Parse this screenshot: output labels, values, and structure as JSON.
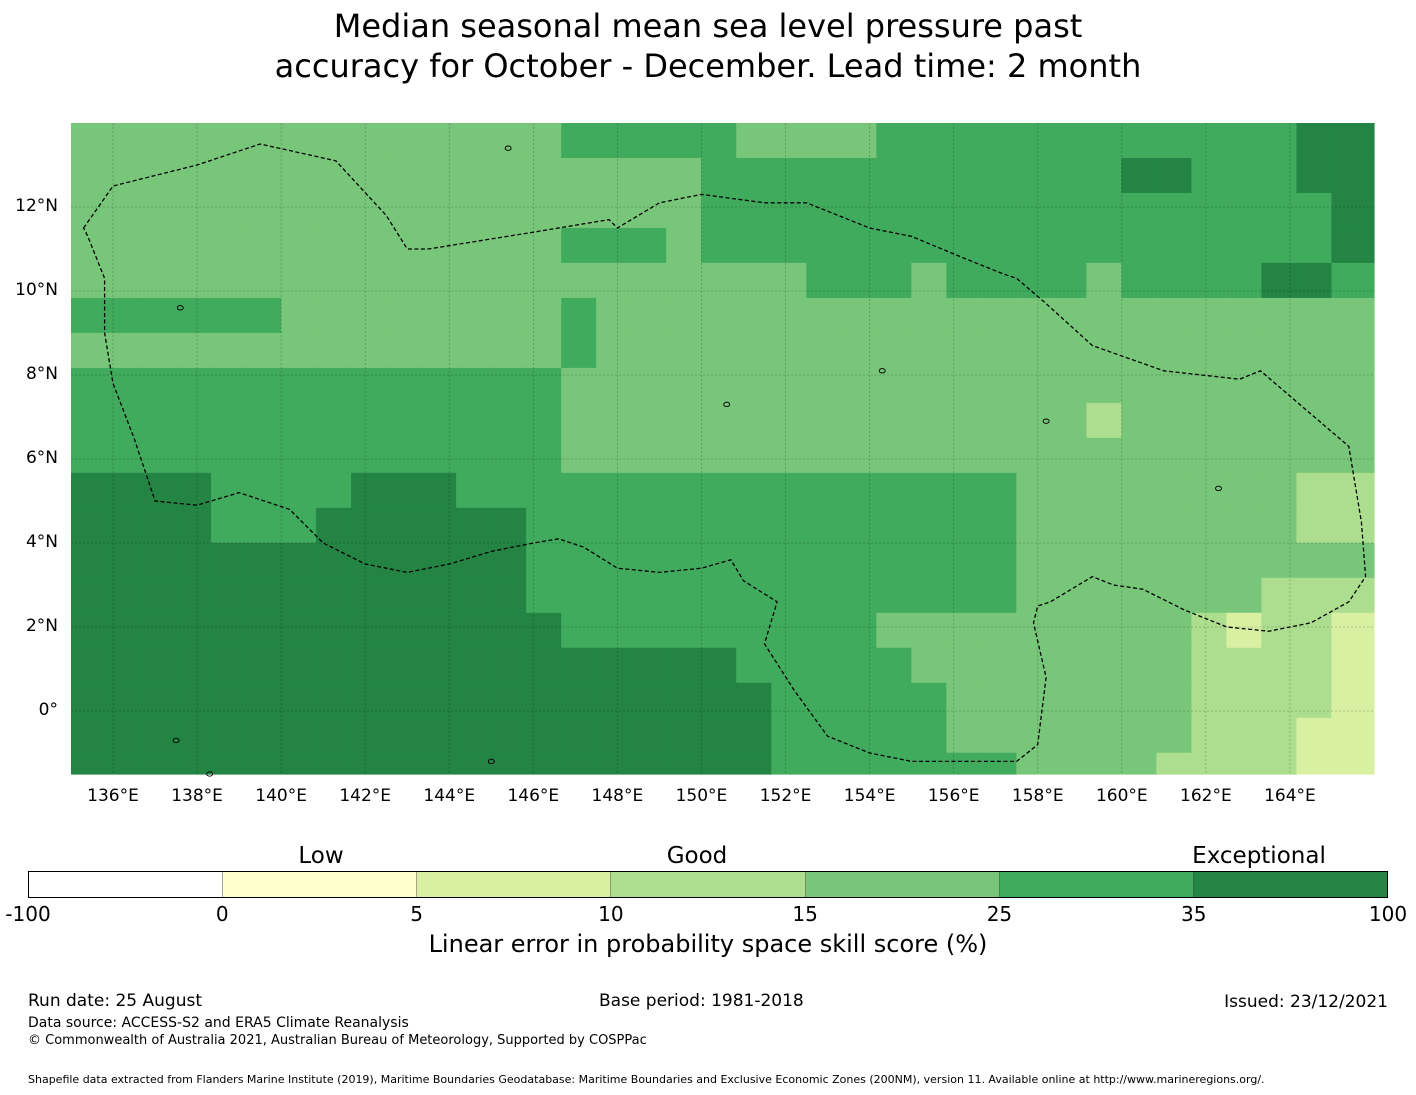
{
  "title": {
    "line1": "Median seasonal mean sea level pressure past",
    "line2": "accuracy for October - December. Lead time: 2 month"
  },
  "map": {
    "lon_labels": [
      "136°E",
      "138°E",
      "140°E",
      "142°E",
      "144°E",
      "146°E",
      "148°E",
      "150°E",
      "152°E",
      "154°E",
      "156°E",
      "158°E",
      "160°E",
      "162°E",
      "164°E"
    ],
    "lat_labels": [
      "12°N",
      "10°N",
      "8°N",
      "6°N",
      "4°N",
      "2°N",
      "0°"
    ],
    "lon_range": [
      135,
      166
    ],
    "lat_range": [
      -1.5,
      14
    ],
    "grid_resolution_deg": 0.833,
    "note_cells": "Skill categories per grid cell (0=below 0,1=0-5,2=5-10,3=10-15,4=15-25,5=25-35,6=35-100)"
  },
  "colorbar": {
    "categories": [
      "Low",
      "Good",
      "Exceptional"
    ],
    "ticks": [
      "-100",
      "0",
      "5",
      "10",
      "15",
      "25",
      "35",
      "100"
    ],
    "colors": [
      "#ffffff",
      "#ffffcc",
      "#d9f0a3",
      "#addd8e",
      "#78c679",
      "#41ab5d",
      "#238443"
    ],
    "label": "Linear error in probability space skill score (%)"
  },
  "footer": {
    "run_date": "Run date: 25 August",
    "base_period": "Base period: 1981-2018",
    "issued": "Issued: 23/12/2021",
    "data_source": "Data source: ACCESS-S2 and ERA5 Climate Reanalysis",
    "copyright": "© Commonwealth of Australia 2021, Australian Bureau of Meteorology, Supported by COSPPac",
    "shapefile": "Shapefile data extracted from Flanders Marine Institute (2019), Maritime Boundaries Geodatabase: Maritime Boundaries and Exclusive Economic Zones (200NM), version 11. Available online at http://www.marineregions.org/."
  }
}
